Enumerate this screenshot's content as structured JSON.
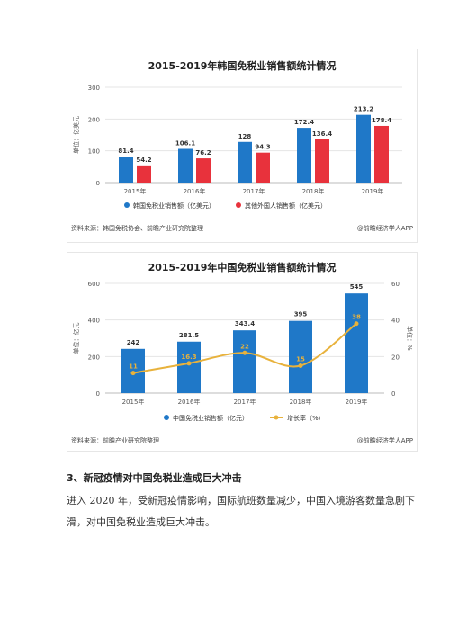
{
  "colors": {
    "blue": "#1f78c8",
    "red": "#e8323c",
    "gold": "#e8b23c",
    "grid": "#e4e4e4",
    "axis_text": "#555555"
  },
  "chart_data": [
    {
      "type": "bar",
      "title": "2015-2019年韩国免税业销售额统计情况",
      "ylabel": "单位：亿美元",
      "ylim": [
        0,
        300
      ],
      "yticks": [
        0,
        100,
        200,
        300
      ],
      "categories": [
        "2015年",
        "2016年",
        "2017年",
        "2018年",
        "2019年"
      ],
      "series": [
        {
          "name": "韩国免税业销售额（亿美元）",
          "color": "#1f78c8",
          "values": [
            81.4,
            106.1,
            128,
            172.4,
            213.2
          ]
        },
        {
          "name": "其他外国人销售额（亿美元）",
          "color": "#e8323c",
          "values": [
            54.2,
            76.2,
            94.3,
            136.4,
            178.4
          ]
        }
      ],
      "data_labels": {
        "s0": [
          "81.4",
          "106.1",
          "128",
          "172.4",
          "213.2"
        ],
        "s1": [
          "54.2",
          "76.2",
          "94.3",
          "136.4",
          "178.4"
        ]
      },
      "grid": true,
      "legend": "bottom",
      "source": "资料来源：韩国免税协会、前瞻产业研究院整理",
      "credit": "@前瞻经济学人APP"
    },
    {
      "type": "bar+line",
      "title": "2015-2019年中国免税业销售额统计情况",
      "ylabel": "单位：亿元",
      "y2label": "单位：%",
      "ylim": [
        0,
        600
      ],
      "yticks": [
        0,
        200,
        400,
        600
      ],
      "y2lim": [
        0,
        60
      ],
      "y2ticks": [
        0,
        20,
        40,
        60
      ],
      "categories": [
        "2015年",
        "2016年",
        "2017年",
        "2018年",
        "2019年"
      ],
      "series": [
        {
          "name": "中国免税业销售额（亿元）",
          "color": "#1f78c8",
          "values": [
            242,
            281.5,
            343.4,
            395,
            545
          ]
        },
        {
          "name": "增长率（%）",
          "color": "#e8b23c",
          "values": [
            11,
            16.3,
            22,
            15,
            38
          ]
        }
      ],
      "data_labels": {
        "s0": [
          "242",
          "281.5",
          "343.4",
          "395",
          "545"
        ],
        "s1": [
          "11",
          "16.3",
          "22",
          "15",
          "38"
        ]
      },
      "grid": true,
      "legend": "bottom",
      "source": "资料来源：前瞻产业研究院整理",
      "credit": "@前瞻经济学人APP"
    }
  ],
  "section": {
    "heading": "3、新冠疫情对中国免税业造成巨大冲击",
    "paragraph_lines": [
      "进入 2020 年，受新冠疫情影响，国际航班数量减少，中国入境游客数量急剧下",
      "滑，对中国免税业造成巨大冲击。"
    ]
  }
}
